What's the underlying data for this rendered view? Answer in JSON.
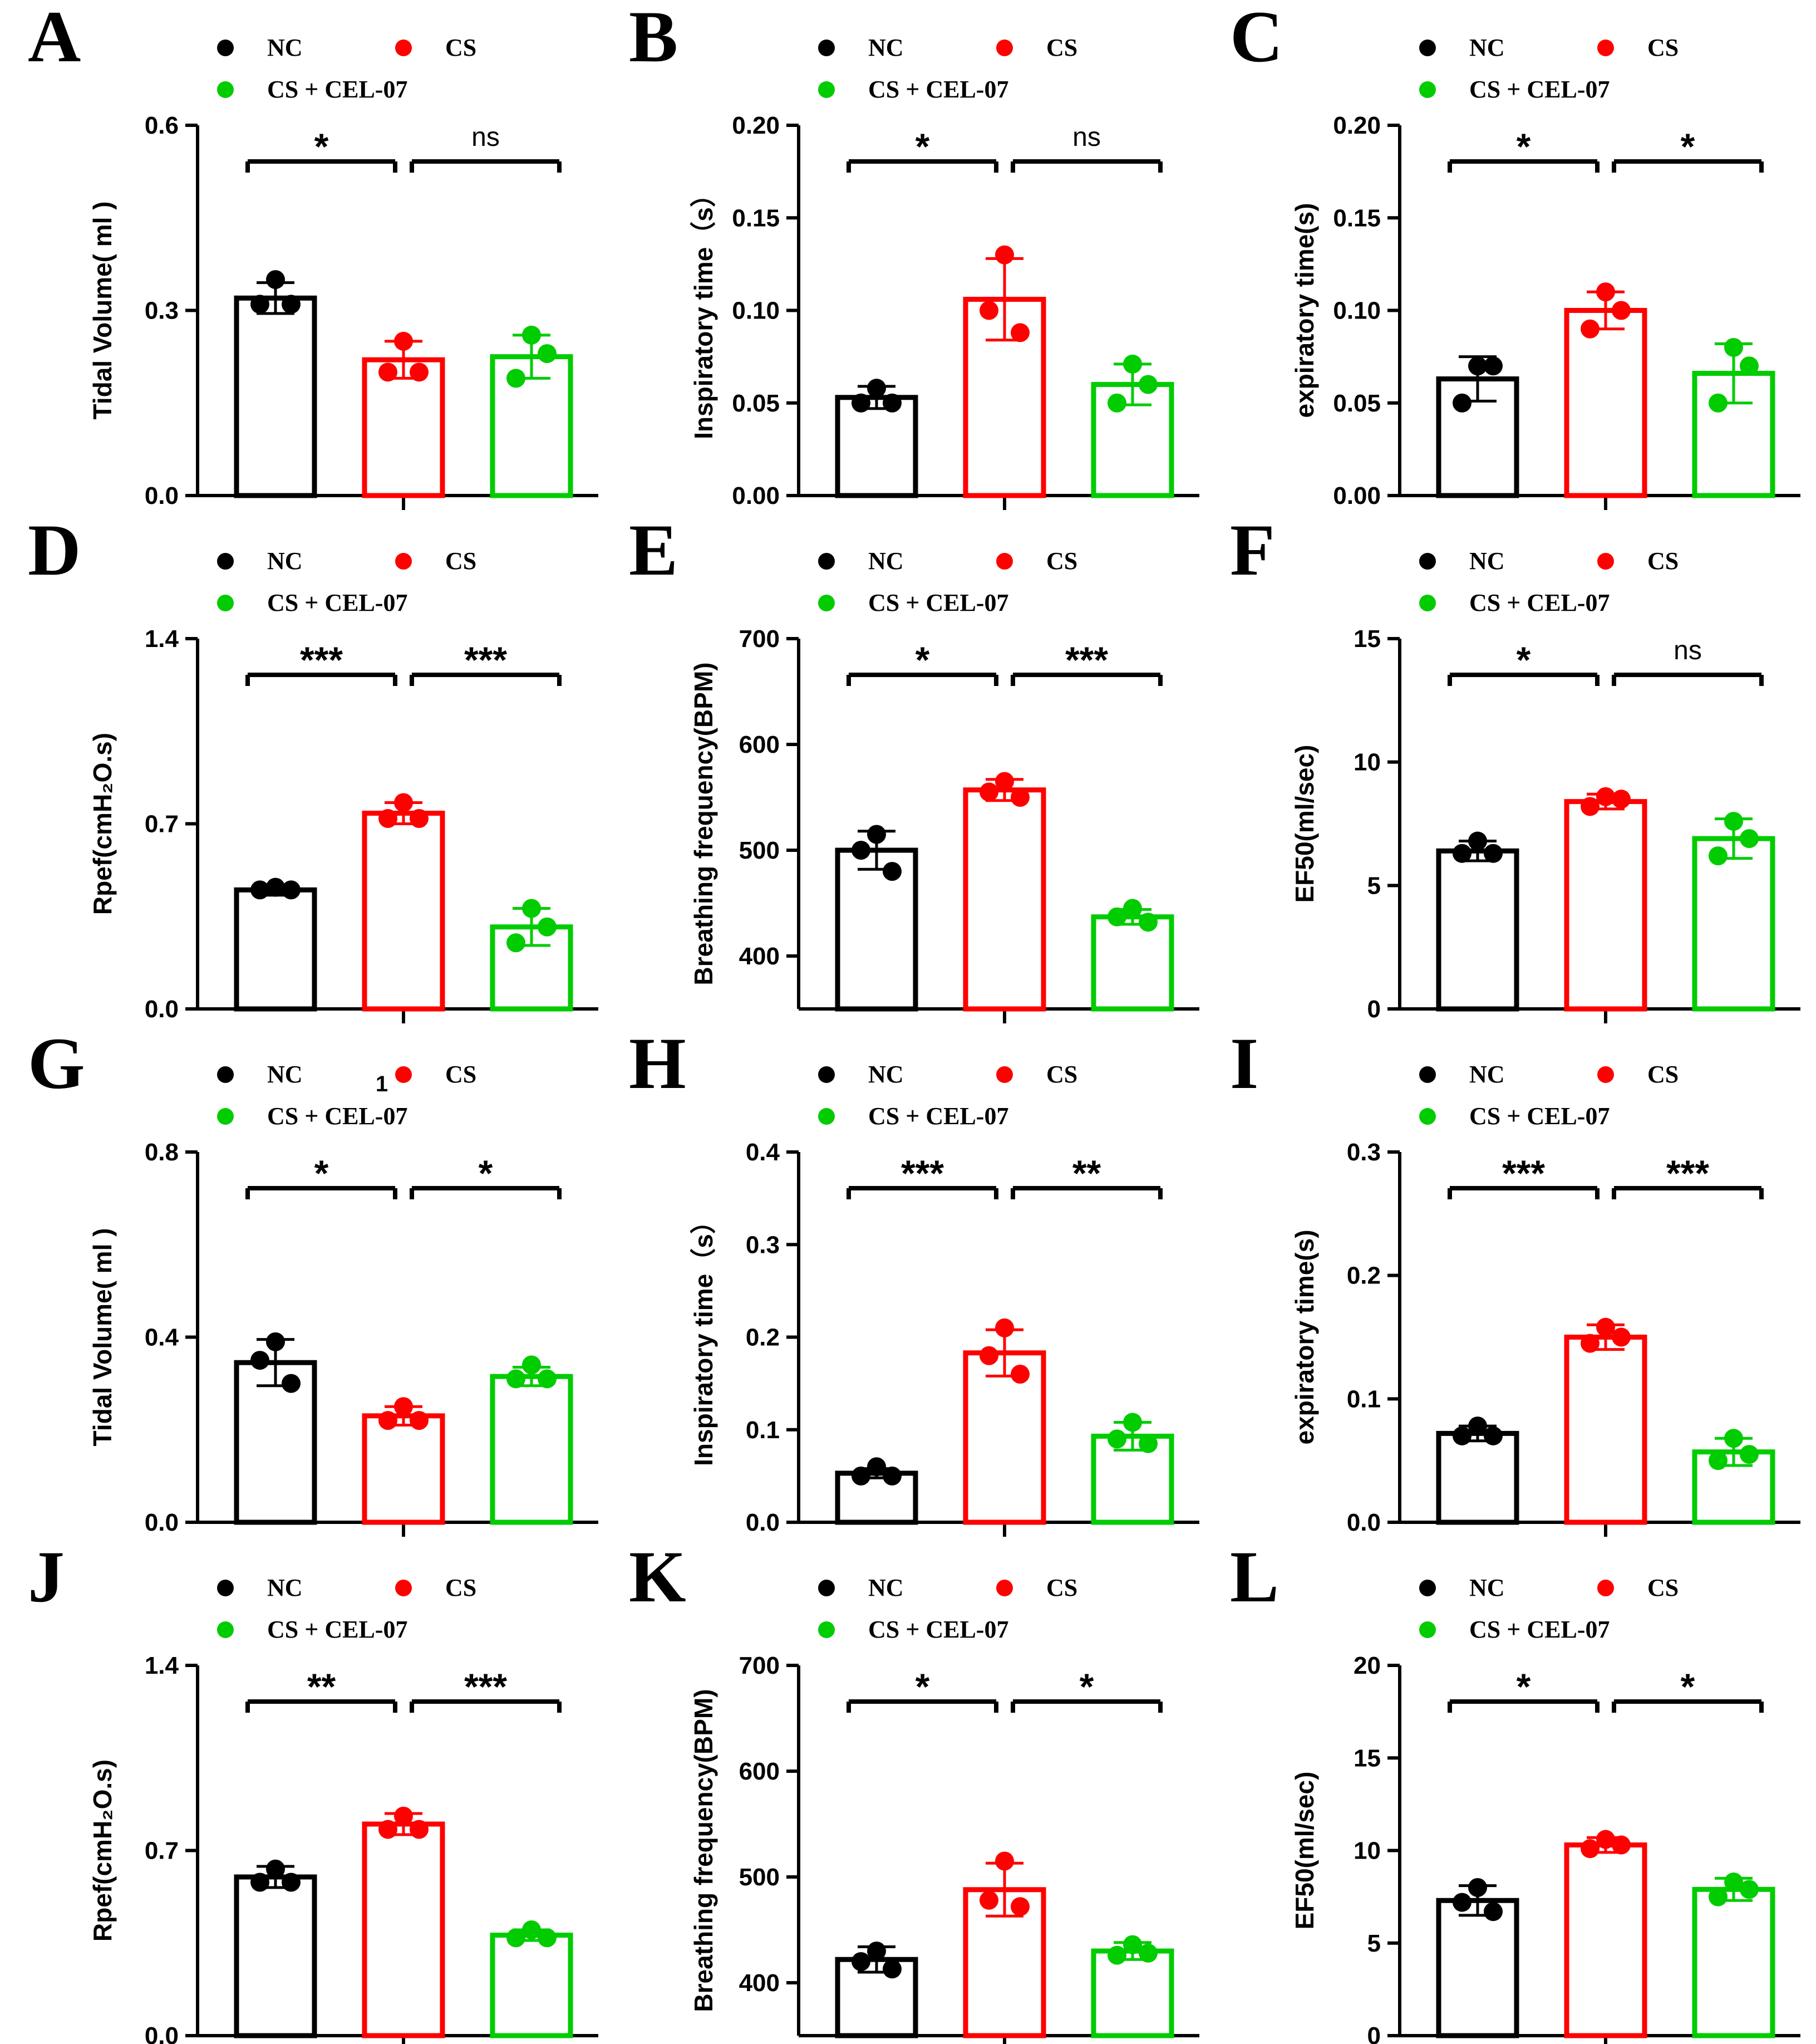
{
  "figure_note": "1",
  "legend": [
    {
      "name": "NC",
      "color": "#000000"
    },
    {
      "name": "CS",
      "color": "#ff0000"
    },
    {
      "name": "CS + CEL-07",
      "color": "#00cc00"
    }
  ],
  "chart_data": [
    {
      "id": "A",
      "type": "bar",
      "ylabel": "Tidal Volume( ml )",
      "categories": [
        "NC",
        "CS",
        "CS + CEL-07"
      ],
      "ylim": [
        0,
        0.6
      ],
      "yticks": [
        "0.0",
        "0.3",
        "0.6"
      ],
      "tickvals": [
        0,
        0.3,
        0.6
      ],
      "values": [
        0.32,
        0.22,
        0.225
      ],
      "errors": [
        0.025,
        0.03,
        0.035
      ],
      "points": [
        [
          0.35,
          0.31,
          0.31
        ],
        [
          0.25,
          0.2,
          0.2
        ],
        [
          0.26,
          0.19,
          0.23
        ]
      ],
      "sig": [
        {
          "from": 0,
          "to": 1,
          "label": "*"
        },
        {
          "from": 1,
          "to": 2,
          "label": "ns"
        }
      ]
    },
    {
      "id": "B",
      "type": "bar",
      "ylabel": "Inspiratory time（s）",
      "categories": [
        "NC",
        "CS",
        "CS + CEL-07"
      ],
      "ylim": [
        0,
        0.2
      ],
      "yticks": [
        "0.00",
        "0.05",
        "0.10",
        "0.15",
        "0.20"
      ],
      "tickvals": [
        0,
        0.05,
        0.1,
        0.15,
        0.2
      ],
      "values": [
        0.053,
        0.106,
        0.06
      ],
      "errors": [
        0.006,
        0.022,
        0.011
      ],
      "points": [
        [
          0.058,
          0.05,
          0.05
        ],
        [
          0.13,
          0.1,
          0.088
        ],
        [
          0.071,
          0.05,
          0.06
        ]
      ],
      "sig": [
        {
          "from": 0,
          "to": 1,
          "label": "*"
        },
        {
          "from": 1,
          "to": 2,
          "label": "ns"
        }
      ]
    },
    {
      "id": "C",
      "type": "bar",
      "ylabel": "expiratory time(s)",
      "categories": [
        "NC",
        "CS",
        "CS + CEL-07"
      ],
      "ylim": [
        0,
        0.2
      ],
      "yticks": [
        "0.00",
        "0.05",
        "0.10",
        "0.15",
        "0.20"
      ],
      "tickvals": [
        0,
        0.05,
        0.1,
        0.15,
        0.2
      ],
      "values": [
        0.063,
        0.1,
        0.066
      ],
      "errors": [
        0.012,
        0.01,
        0.016
      ],
      "points": [
        [
          0.07,
          0.05,
          0.07
        ],
        [
          0.11,
          0.09,
          0.1
        ],
        [
          0.08,
          0.05,
          0.07
        ]
      ],
      "sig": [
        {
          "from": 0,
          "to": 1,
          "label": "*"
        },
        {
          "from": 1,
          "to": 2,
          "label": "*"
        }
      ]
    },
    {
      "id": "D",
      "type": "bar",
      "ylabel": "Rpef(cmH₂O.s)",
      "categories": [
        "NC",
        "CS",
        "CS + CEL-07"
      ],
      "ylim": [
        0,
        1.4
      ],
      "yticks": [
        "0.0",
        "0.7",
        "1.4"
      ],
      "tickvals": [
        0,
        0.7,
        1.4
      ],
      "values": [
        0.45,
        0.74,
        0.31
      ],
      "errors": [
        0.02,
        0.04,
        0.07
      ],
      "points": [
        [
          0.46,
          0.45,
          0.45
        ],
        [
          0.78,
          0.72,
          0.72
        ],
        [
          0.38,
          0.25,
          0.31
        ]
      ],
      "sig": [
        {
          "from": 0,
          "to": 1,
          "label": "***"
        },
        {
          "from": 1,
          "to": 2,
          "label": "***"
        }
      ]
    },
    {
      "id": "E",
      "type": "bar",
      "ylabel": "Breathing frequency(BPM)",
      "categories": [
        "NC",
        "CS",
        "CS + CEL-07"
      ],
      "ylim": [
        350,
        700
      ],
      "yticks": [
        "400",
        "500",
        "600",
        "700"
      ],
      "tickvals": [
        400,
        500,
        600,
        700
      ],
      "values": [
        500,
        557,
        437
      ],
      "errors": [
        18,
        10,
        7
      ],
      "points": [
        [
          515,
          500,
          480
        ],
        [
          565,
          555,
          550
        ],
        [
          445,
          437,
          432
        ]
      ],
      "sig": [
        {
          "from": 0,
          "to": 1,
          "label": "*"
        },
        {
          "from": 1,
          "to": 2,
          "label": "***"
        }
      ]
    },
    {
      "id": "F",
      "type": "bar",
      "ylabel": "EF50(ml/sec)",
      "categories": [
        "NC",
        "CS",
        "CS + CEL-07"
      ],
      "ylim": [
        0,
        15
      ],
      "yticks": [
        "0",
        "5",
        "10",
        "15"
      ],
      "tickvals": [
        0,
        5,
        10,
        15
      ],
      "values": [
        6.4,
        8.4,
        6.9
      ],
      "errors": [
        0.4,
        0.3,
        0.8
      ],
      "points": [
        [
          6.8,
          6.3,
          6.3
        ],
        [
          8.6,
          8.2,
          8.5
        ],
        [
          7.6,
          6.2,
          6.9
        ]
      ],
      "sig": [
        {
          "from": 0,
          "to": 1,
          "label": "*"
        },
        {
          "from": 1,
          "to": 2,
          "label": "ns"
        }
      ]
    },
    {
      "id": "G",
      "type": "bar",
      "ylabel": "Tidal Volume( ml )",
      "categories": [
        "NC",
        "CS",
        "CS + CEL-07"
      ],
      "ylim": [
        0,
        0.8
      ],
      "yticks": [
        "0.0",
        "0.4",
        "0.8"
      ],
      "tickvals": [
        0,
        0.4,
        0.8
      ],
      "values": [
        0.345,
        0.23,
        0.315
      ],
      "errors": [
        0.05,
        0.02,
        0.02
      ],
      "points": [
        [
          0.39,
          0.35,
          0.3
        ],
        [
          0.25,
          0.22,
          0.22
        ],
        [
          0.34,
          0.31,
          0.31
        ]
      ],
      "sig": [
        {
          "from": 0,
          "to": 1,
          "label": "*"
        },
        {
          "from": 1,
          "to": 2,
          "label": "*"
        }
      ]
    },
    {
      "id": "H",
      "type": "bar",
      "ylabel": "Inspiratory time（s）",
      "categories": [
        "NC",
        "CS",
        "CS + CEL-07"
      ],
      "ylim": [
        0,
        0.4
      ],
      "yticks": [
        "0.0",
        "0.1",
        "0.2",
        "0.3",
        "0.4"
      ],
      "tickvals": [
        0,
        0.1,
        0.2,
        0.3,
        0.4
      ],
      "values": [
        0.053,
        0.183,
        0.093
      ],
      "errors": [
        0.005,
        0.025,
        0.015
      ],
      "points": [
        [
          0.06,
          0.05,
          0.05
        ],
        [
          0.21,
          0.18,
          0.16
        ],
        [
          0.108,
          0.09,
          0.085
        ]
      ],
      "sig": [
        {
          "from": 0,
          "to": 1,
          "label": "***"
        },
        {
          "from": 1,
          "to": 2,
          "label": "**"
        }
      ]
    },
    {
      "id": "I",
      "type": "bar",
      "ylabel": "expiratory time(s)",
      "categories": [
        "NC",
        "CS",
        "CS + CEL-07"
      ],
      "ylim": [
        0,
        0.3
      ],
      "yticks": [
        "0.0",
        "0.1",
        "0.2",
        "0.3"
      ],
      "tickvals": [
        0,
        0.1,
        0.2,
        0.3
      ],
      "values": [
        0.072,
        0.15,
        0.057
      ],
      "errors": [
        0.006,
        0.01,
        0.011
      ],
      "points": [
        [
          0.078,
          0.07,
          0.07
        ],
        [
          0.158,
          0.145,
          0.15
        ],
        [
          0.068,
          0.05,
          0.055
        ]
      ],
      "sig": [
        {
          "from": 0,
          "to": 1,
          "label": "***"
        },
        {
          "from": 1,
          "to": 2,
          "label": "***"
        }
      ]
    },
    {
      "id": "J",
      "type": "bar",
      "ylabel": "Rpef(cmH₂O.s)",
      "categories": [
        "NC",
        "CS",
        "CS + CEL-07"
      ],
      "ylim": [
        0,
        1.4
      ],
      "yticks": [
        "0.0",
        "0.7",
        "1.4"
      ],
      "tickvals": [
        0,
        0.7,
        1.4
      ],
      "values": [
        0.6,
        0.8,
        0.38
      ],
      "errors": [
        0.04,
        0.04,
        0.02
      ],
      "points": [
        [
          0.63,
          0.58,
          0.58
        ],
        [
          0.83,
          0.78,
          0.78
        ],
        [
          0.4,
          0.37,
          0.37
        ]
      ],
      "sig": [
        {
          "from": 0,
          "to": 1,
          "label": "**"
        },
        {
          "from": 1,
          "to": 2,
          "label": "***"
        }
      ]
    },
    {
      "id": "K",
      "type": "bar",
      "ylabel": "Breathing frequency(BPM)",
      "categories": [
        "NC",
        "CS",
        "CS + CEL-07"
      ],
      "ylim": [
        350,
        700
      ],
      "yticks": [
        "400",
        "500",
        "600",
        "700"
      ],
      "tickvals": [
        400,
        500,
        600,
        700
      ],
      "values": [
        422,
        488,
        430
      ],
      "errors": [
        12,
        25,
        8
      ],
      "points": [
        [
          430,
          420,
          413
        ],
        [
          515,
          478,
          472
        ],
        [
          436,
          426,
          428
        ]
      ],
      "sig": [
        {
          "from": 0,
          "to": 1,
          "label": "*"
        },
        {
          "from": 1,
          "to": 2,
          "label": "*"
        }
      ]
    },
    {
      "id": "L",
      "type": "bar",
      "ylabel": "EF50(ml/sec)",
      "categories": [
        "NC",
        "CS",
        "CS + CEL-07"
      ],
      "ylim": [
        0,
        20
      ],
      "yticks": [
        "0",
        "5",
        "10",
        "15",
        "20"
      ],
      "tickvals": [
        0,
        5,
        10,
        15,
        20
      ],
      "values": [
        7.3,
        10.3,
        7.9
      ],
      "errors": [
        0.8,
        0.4,
        0.6
      ],
      "points": [
        [
          8.0,
          7.2,
          6.7
        ],
        [
          10.6,
          10.1,
          10.3
        ],
        [
          8.3,
          7.5,
          7.9
        ]
      ],
      "sig": [
        {
          "from": 0,
          "to": 1,
          "label": "*"
        },
        {
          "from": 1,
          "to": 2,
          "label": "*"
        }
      ]
    }
  ]
}
